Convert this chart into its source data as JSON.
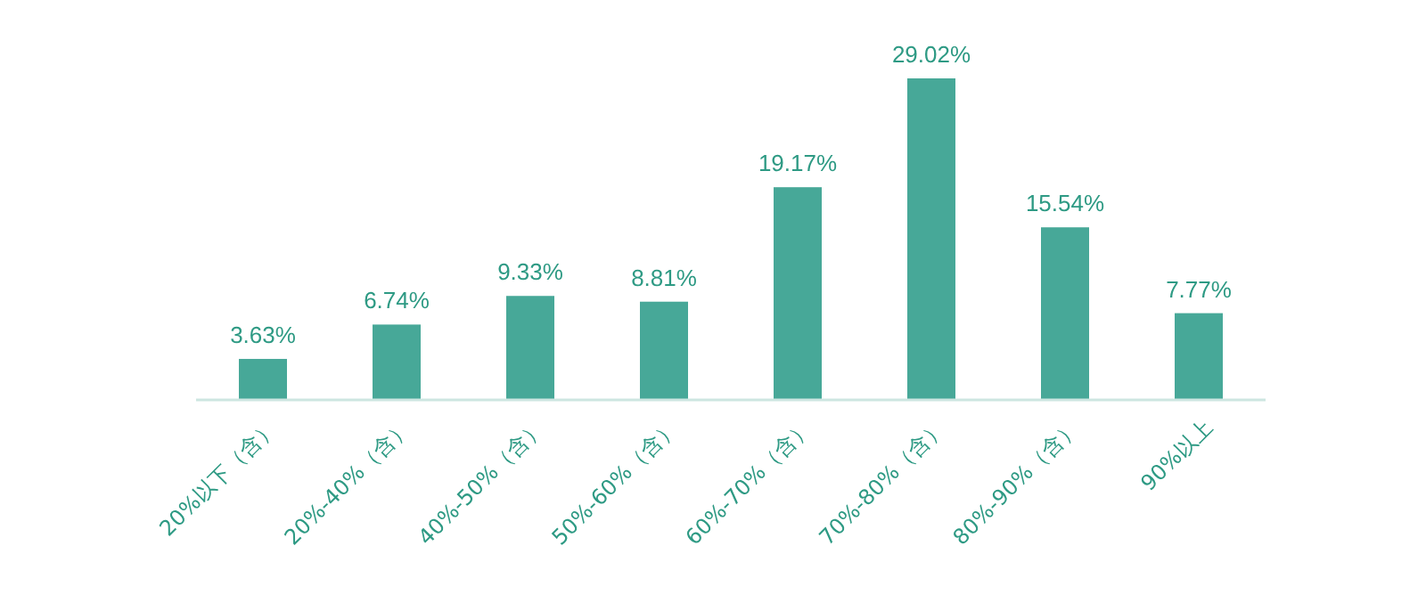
{
  "chart_data": {
    "type": "bar",
    "categories": [
      "20%以下（含）",
      "20%-40%（含）",
      "40%-50%（含）",
      "50%-60%（含）",
      "60%-70%（含）",
      "70%-80%（含）",
      "80%-90%（含）",
      "90%以上"
    ],
    "values": [
      3.63,
      6.74,
      9.33,
      8.81,
      19.17,
      29.02,
      15.54,
      7.77
    ],
    "value_labels": [
      "3.63%",
      "6.74%",
      "9.33%",
      "8.81%",
      "19.17%",
      "29.02%",
      "15.54%",
      "7.77%"
    ],
    "color": "#47a898"
  }
}
